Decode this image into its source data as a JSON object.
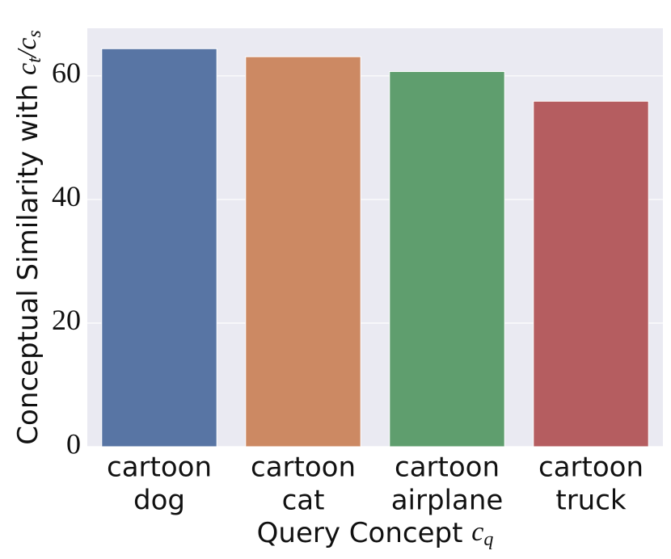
{
  "chart_data": {
    "type": "bar",
    "ylabel": {
      "text": "Conceptual Similarity with",
      "var1": "c",
      "sub1": "t",
      "sep": "/",
      "var2": "c",
      "sub2": "s"
    },
    "xlabel": {
      "text": "Query Concept",
      "var": "c",
      "sub": "q"
    },
    "categories": [
      [
        "cartoon",
        "dog"
      ],
      [
        "cartoon",
        "cat"
      ],
      [
        "cartoon",
        "airplane"
      ],
      [
        "cartoon",
        "truck"
      ]
    ],
    "values": [
      64.4,
      63.1,
      60.7,
      55.9
    ],
    "colors": [
      "#5875a4",
      "#cc8963",
      "#5f9e6e",
      "#b55d60"
    ],
    "ylim": [
      0,
      67.7
    ],
    "yticks": [
      0,
      20,
      40,
      60
    ],
    "grid": true
  }
}
